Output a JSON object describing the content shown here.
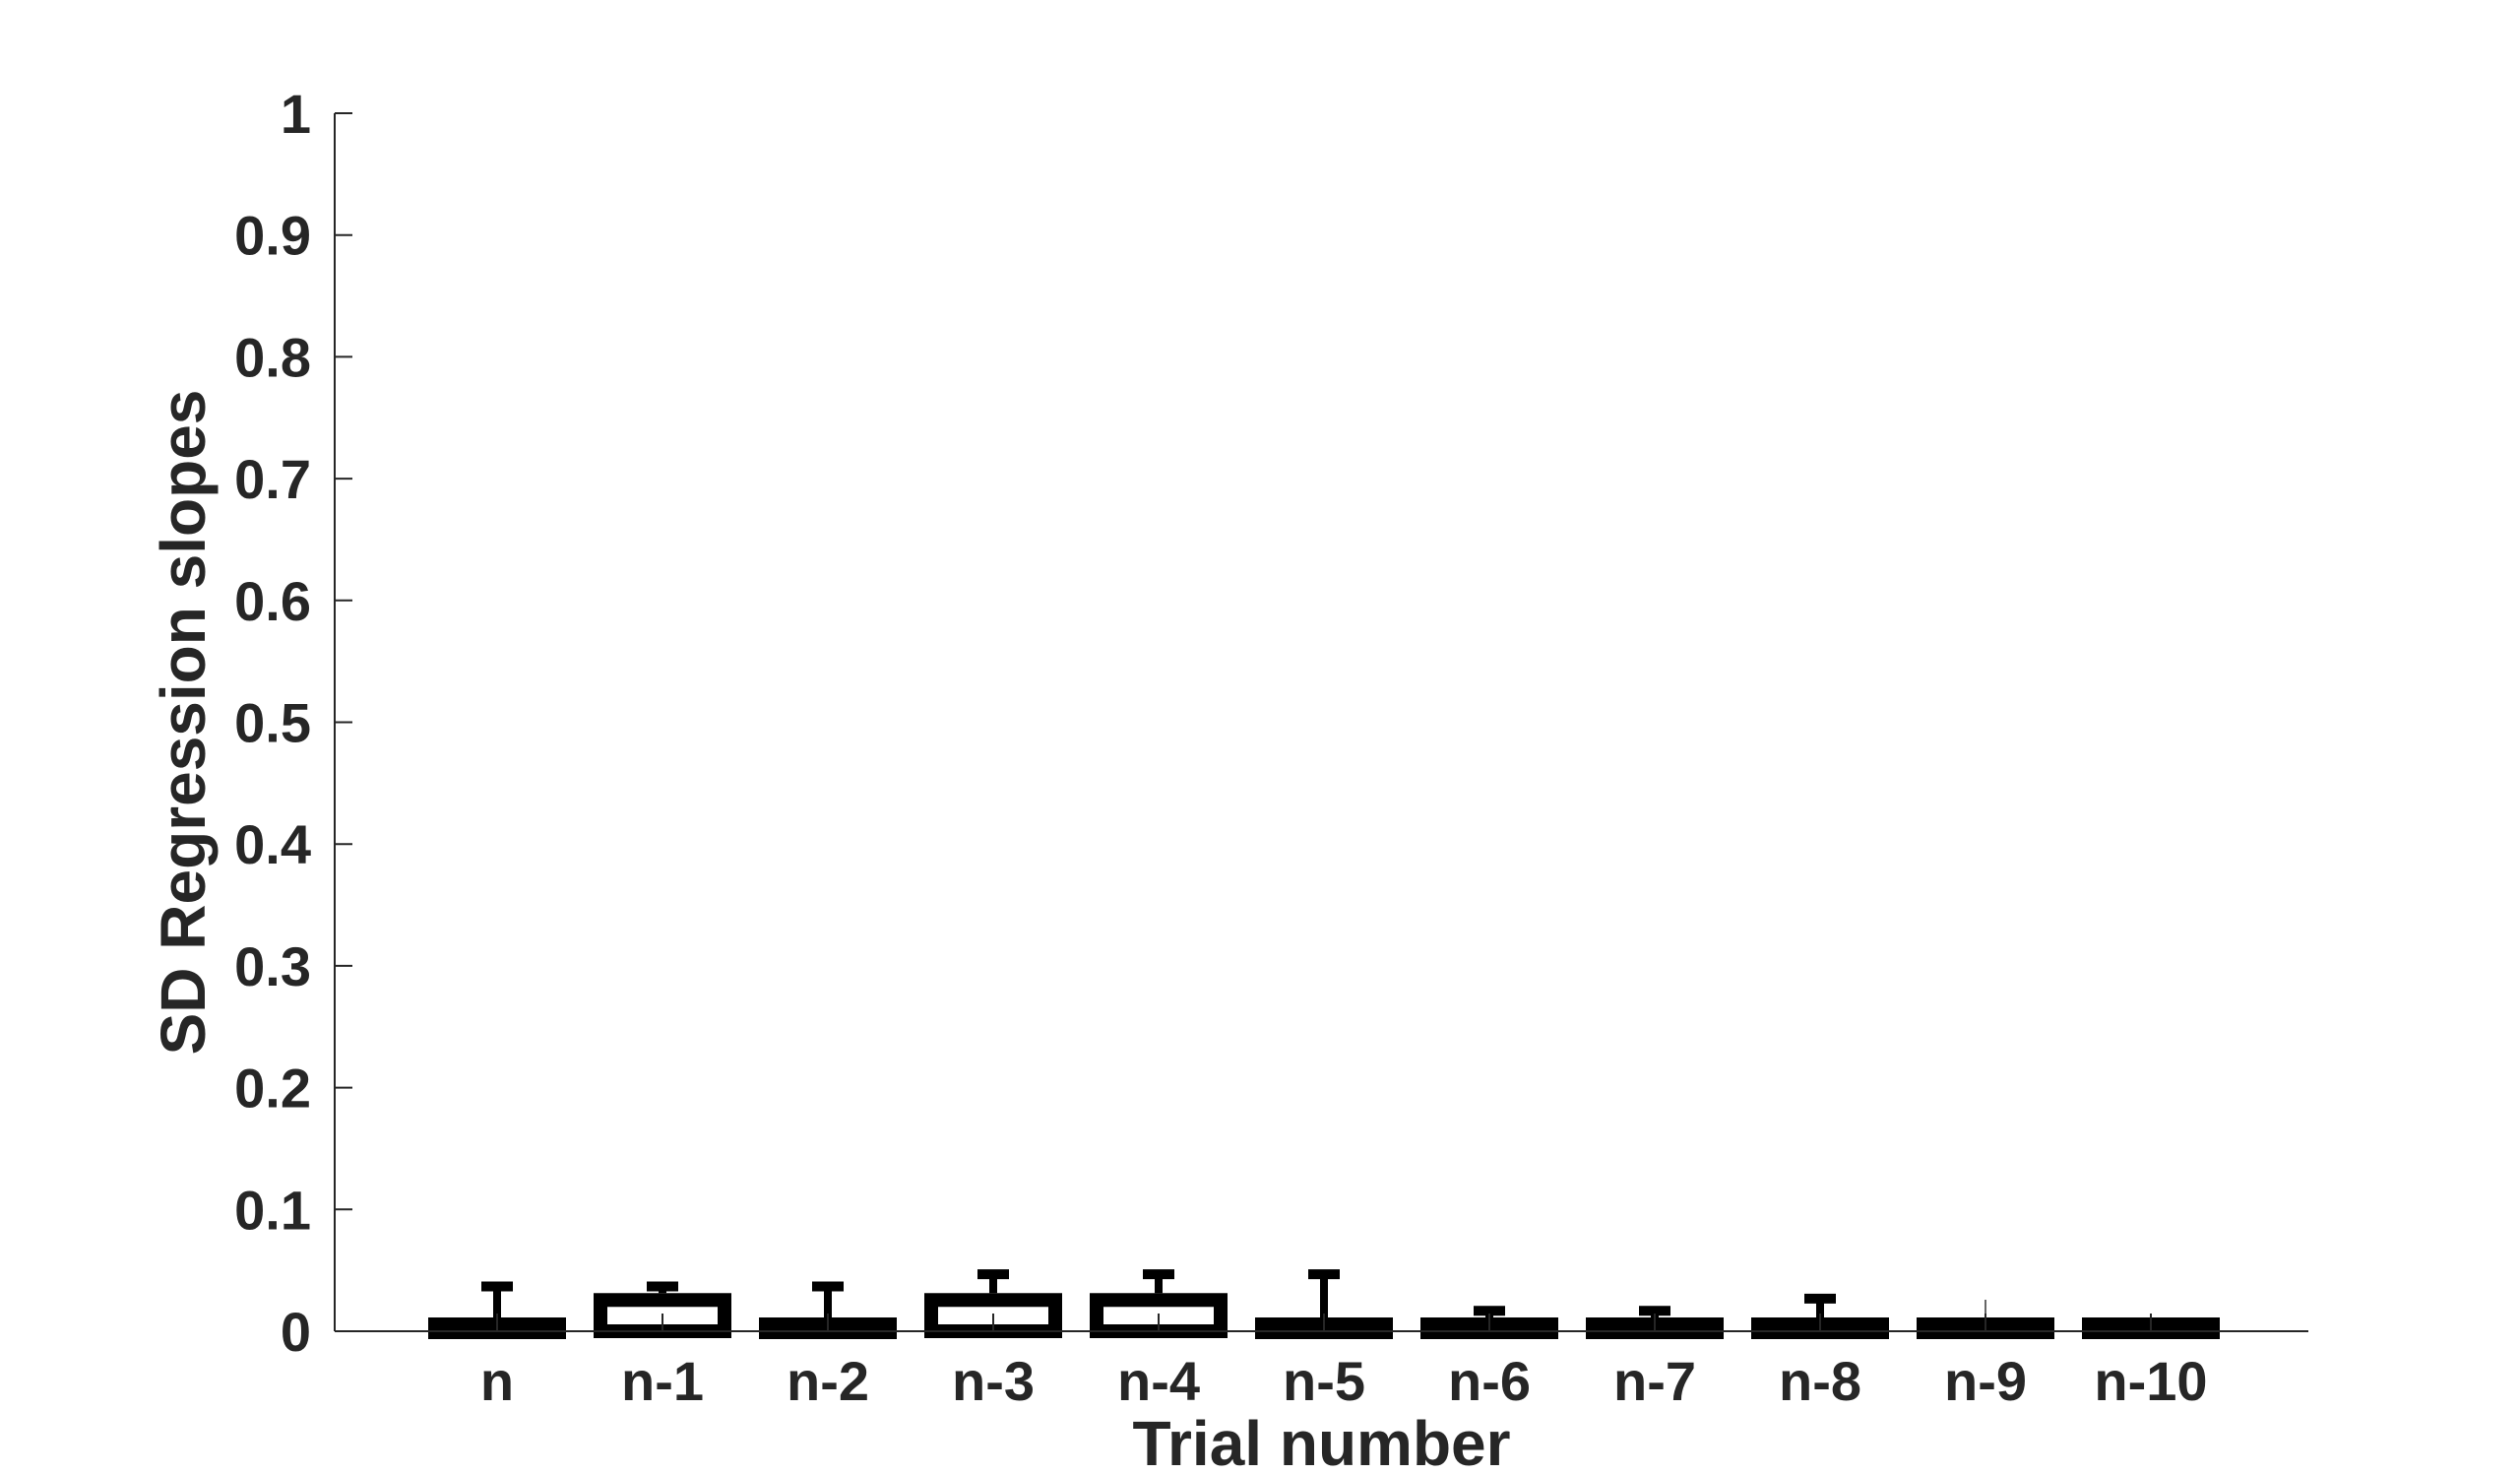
{
  "chart_data": {
    "type": "bar",
    "title": "",
    "xlabel": "Trial number",
    "ylabel": "SD Regression slopes",
    "categories": [
      "n",
      "n-1",
      "n-2",
      "n-3",
      "n-4",
      "n-5",
      "n-6",
      "n-7",
      "n-8",
      "n-9",
      "n-10"
    ],
    "values": [
      0.01,
      0.02,
      0.01,
      0.02,
      0.02,
      0.01,
      0.0,
      0.0,
      0.01,
      0.0,
      0.0
    ],
    "error_upper": [
      0.04,
      0.04,
      0.04,
      0.05,
      0.05,
      0.05,
      0.02,
      0.02,
      0.03,
      0.0,
      0.01
    ],
    "ylim": [
      0,
      1
    ],
    "yticks": [
      "0",
      "0.1",
      "0.2",
      "0.3",
      "0.4",
      "0.5",
      "0.6",
      "0.7",
      "0.8",
      "0.9",
      "1"
    ],
    "grid": false,
    "legend": "none",
    "bar_color": "#000000",
    "bar_edge_color": "#000000",
    "axis_color": "#262626"
  }
}
